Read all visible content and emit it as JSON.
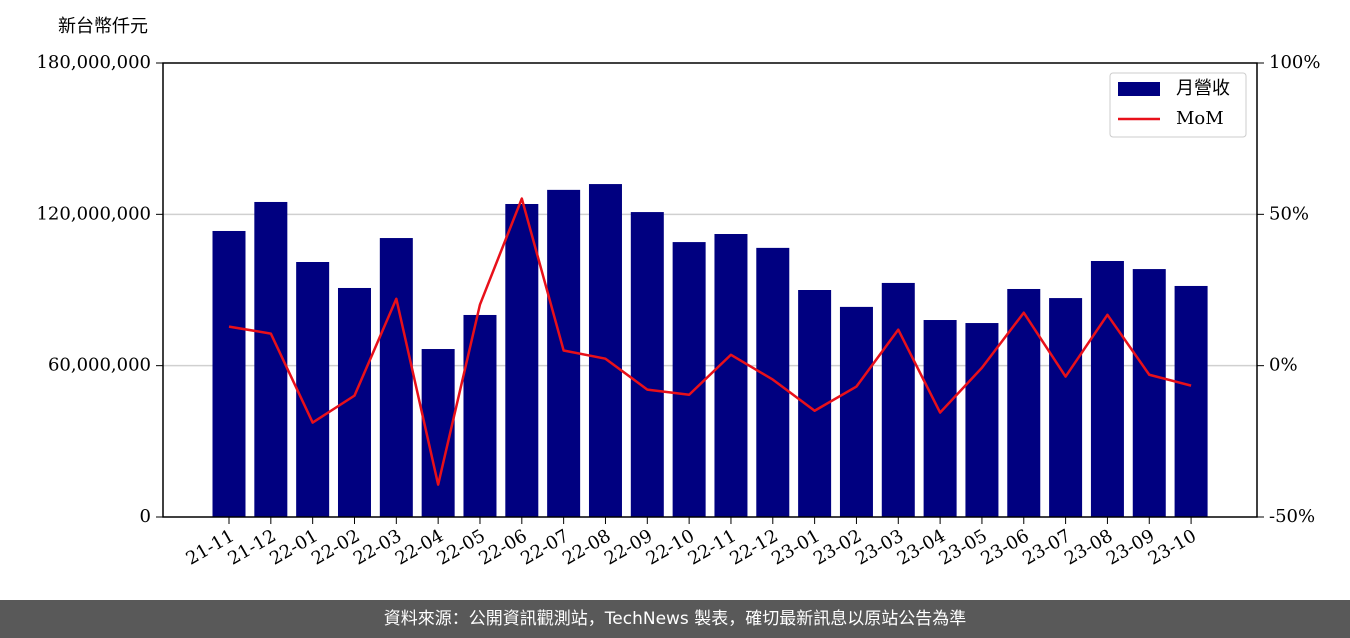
{
  "chart_data": {
    "type": "bar",
    "y_label": "新台幣仟元",
    "categories": [
      "21-11",
      "21-12",
      "22-01",
      "22-02",
      "22-03",
      "22-04",
      "22-05",
      "22-06",
      "22-07",
      "22-08",
      "22-09",
      "22-10",
      "22-11",
      "22-12",
      "23-01",
      "23-02",
      "23-03",
      "23-04",
      "23-05",
      "23-06",
      "23-07",
      "23-08",
      "23-09",
      "23-10"
    ],
    "series": [
      {
        "name": "月營收",
        "type": "bar",
        "color": "#000080",
        "values": [
          113400000,
          124900000,
          101100000,
          90800000,
          110600000,
          66600000,
          80100000,
          124100000,
          129700000,
          132000000,
          120900000,
          109000000,
          112200000,
          106700000,
          90000000,
          83300000,
          92800000,
          78100000,
          76900000,
          90400000,
          86800000,
          101500000,
          98300000,
          91600000
        ]
      },
      {
        "name": "MoM",
        "type": "line",
        "axis": "y2",
        "color": "#e8101a",
        "values": [
          12.9,
          10.6,
          -18.8,
          -9.9,
          22.1,
          -39.3,
          20.2,
          55.2,
          5.0,
          2.3,
          -7.9,
          -9.6,
          3.6,
          -4.6,
          -14.9,
          -6.9,
          11.9,
          -15.5,
          -0.7,
          17.5,
          -3.6,
          16.8,
          -3.0,
          -6.6
        ]
      }
    ],
    "ylim": [
      0,
      180000000
    ],
    "yticks": [
      0,
      {
        "value": 60000000,
        "label": "60,000,000"
      },
      {
        "value": 120000000,
        "label": "120,000,000"
      },
      {
        "value": 180000000,
        "label": "180,000,000"
      }
    ],
    "y2lim": [
      -50,
      100
    ],
    "y2ticks": [
      {
        "value": -50,
        "label": "-50%"
      },
      {
        "value": 0,
        "label": "0%"
      },
      {
        "value": 50,
        "label": "50%"
      },
      {
        "value": 100,
        "label": "100%"
      }
    ],
    "grid": true,
    "legend": "upper right",
    "footer": "資料來源：公開資訊觀測站，TechNews 製表，確切最新訊息以原站公告為準"
  }
}
